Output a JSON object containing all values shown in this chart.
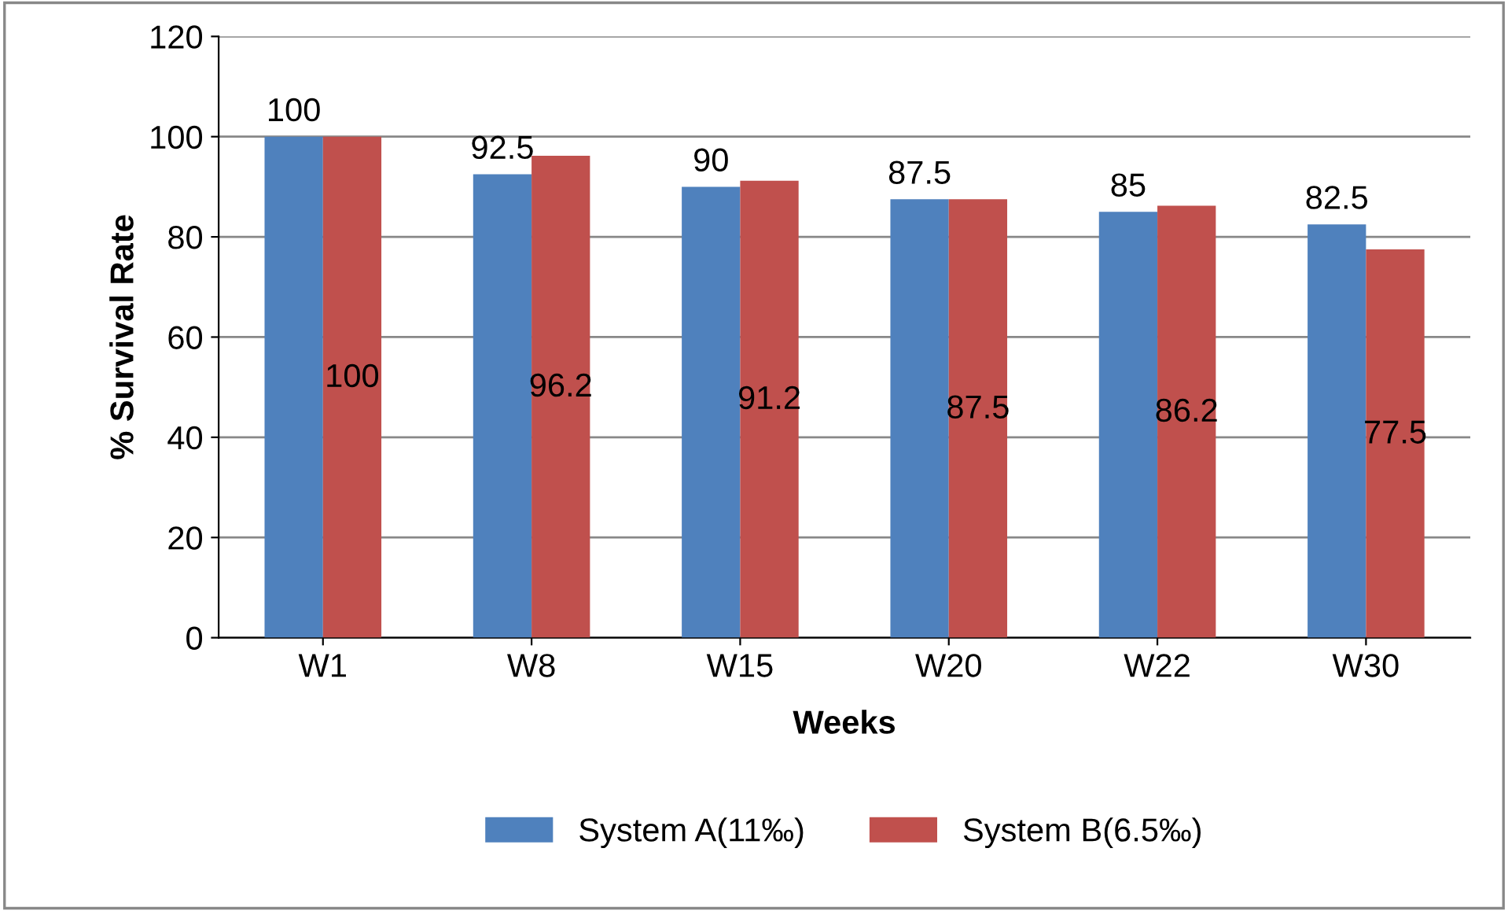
{
  "chart_data": {
    "type": "bar",
    "xlabel": "Weeks",
    "ylabel": "% Survival Rate",
    "categories": [
      "W1",
      "W8",
      "W15",
      "W20",
      "W22",
      "W30"
    ],
    "series": [
      {
        "name": "System A(11‰)",
        "color": "#4f81bd",
        "values": [
          100,
          92.5,
          90,
          87.5,
          85,
          82.5
        ]
      },
      {
        "name": "System B(6.5‰)",
        "color": "#c0504d",
        "values": [
          100,
          96.2,
          91.2,
          87.5,
          86.2,
          77.5
        ]
      }
    ],
    "ylim": [
      0,
      120
    ],
    "yticks": [
      0,
      20,
      40,
      60,
      80,
      100,
      120
    ],
    "grid": "y",
    "legend": "bottom",
    "data_labels": true
  }
}
